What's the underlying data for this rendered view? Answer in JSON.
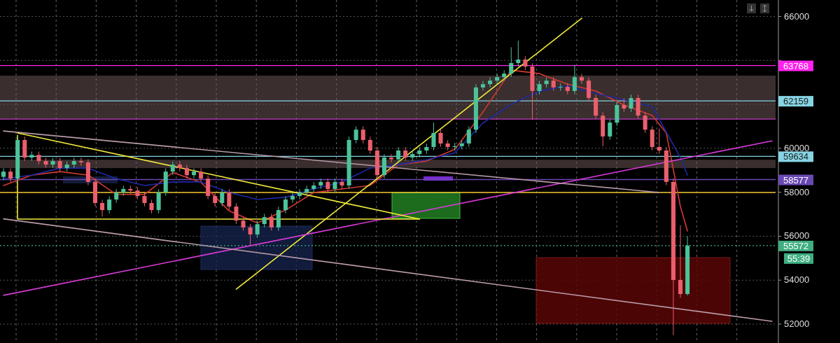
{
  "chart_data": {
    "type": "candlestick",
    "categories": [
      null,
      null,
      null,
      null,
      null,
      null,
      null,
      null,
      null,
      null,
      null,
      null,
      null,
      null,
      null,
      null,
      null,
      null,
      null,
      null,
      null,
      null,
      null,
      null,
      null,
      null,
      null,
      null,
      null,
      null,
      null,
      null,
      null,
      null,
      null,
      null,
      null,
      null,
      null,
      null,
      null,
      null,
      null,
      null,
      null,
      null,
      null,
      null,
      null,
      null,
      null,
      null,
      null,
      null,
      null,
      null,
      null,
      null,
      null,
      null,
      null,
      null,
      null,
      null,
      null,
      null,
      null,
      null,
      null,
      null,
      null,
      null,
      null,
      null,
      null,
      null,
      null,
      null,
      null,
      null,
      null,
      null,
      null,
      null,
      null,
      null,
      null,
      null,
      null,
      null,
      null,
      null,
      null,
      null,
      null,
      null,
      null,
      null,
      null,
      null,
      null,
      null,
      null,
      null,
      null,
      null,
      null,
      null,
      null,
      null
    ],
    "ohlc": [
      [
        58700,
        59090,
        58550,
        58940
      ],
      [
        58940,
        59090,
        58470,
        58620
      ],
      [
        58620,
        60530,
        58470,
        60380
      ],
      [
        60380,
        60530,
        59430,
        59580
      ],
      [
        59580,
        59850,
        59430,
        59700
      ],
      [
        59700,
        59850,
        59270,
        59420
      ],
      [
        59420,
        59570,
        59110,
        59260
      ],
      [
        59260,
        59570,
        59110,
        59420
      ],
      [
        59420,
        59570,
        58950,
        59100
      ],
      [
        59100,
        59410,
        58950,
        59260
      ],
      [
        59260,
        59570,
        59110,
        59420
      ],
      [
        59420,
        59570,
        59210,
        59360
      ],
      [
        59360,
        59510,
        58320,
        58470
      ],
      [
        58470,
        58620,
        57360,
        57510
      ],
      [
        57510,
        57660,
        56890,
        57190
      ],
      [
        57190,
        57820,
        57040,
        57670
      ],
      [
        57670,
        58140,
        57520,
        57990
      ],
      [
        57990,
        58300,
        57840,
        58150
      ],
      [
        58150,
        58300,
        57930,
        58080
      ],
      [
        58080,
        58230,
        57680,
        57830
      ],
      [
        57830,
        57980,
        57360,
        57510
      ],
      [
        57510,
        57660,
        57040,
        57190
      ],
      [
        57190,
        58140,
        57040,
        57990
      ],
      [
        57990,
        59090,
        57840,
        58940
      ],
      [
        58940,
        59410,
        58790,
        59260
      ],
      [
        59260,
        59410,
        58950,
        59100
      ],
      [
        59100,
        59250,
        58630,
        58780
      ],
      [
        58780,
        59090,
        58630,
        58940
      ],
      [
        58940,
        59090,
        58470,
        58620
      ],
      [
        58620,
        58770,
        57680,
        57830
      ],
      [
        57830,
        57980,
        57360,
        57510
      ],
      [
        57510,
        58140,
        57360,
        57990
      ],
      [
        57990,
        58140,
        57200,
        57350
      ],
      [
        57350,
        57500,
        56560,
        56710
      ],
      [
        56710,
        56860,
        56250,
        56400
      ],
      [
        56400,
        56550,
        55600,
        56080
      ],
      [
        56080,
        56700,
        55930,
        56550
      ],
      [
        56550,
        57020,
        56400,
        56870
      ],
      [
        56870,
        57020,
        56250,
        56400
      ],
      [
        56400,
        57340,
        56250,
        57190
      ],
      [
        57190,
        57820,
        57040,
        57670
      ],
      [
        57670,
        57980,
        57520,
        57830
      ],
      [
        57830,
        58140,
        57680,
        57990
      ],
      [
        57990,
        58300,
        57840,
        58150
      ],
      [
        58150,
        58460,
        58000,
        58310
      ],
      [
        58310,
        58620,
        58160,
        58470
      ],
      [
        58470,
        58620,
        58000,
        58150
      ],
      [
        58150,
        58620,
        58000,
        58470
      ],
      [
        58470,
        58620,
        58160,
        58310
      ],
      [
        58310,
        60530,
        58160,
        60380
      ],
      [
        60380,
        61000,
        60230,
        60850
      ],
      [
        60850,
        61000,
        60230,
        60380
      ],
      [
        60380,
        60530,
        59750,
        59900
      ],
      [
        59900,
        60050,
        58630,
        58780
      ],
      [
        58780,
        59730,
        58630,
        59580
      ],
      [
        59580,
        59730,
        59350,
        59500
      ],
      [
        59500,
        60050,
        59350,
        59900
      ],
      [
        59900,
        60050,
        59430,
        59580
      ],
      [
        59580,
        59890,
        59430,
        59740
      ],
      [
        59740,
        60050,
        59590,
        59900
      ],
      [
        59900,
        60210,
        59750,
        60060
      ],
      [
        60060,
        61170,
        59910,
        60700
      ],
      [
        60700,
        60850,
        60070,
        60220
      ],
      [
        60220,
        60370,
        59910,
        60060
      ],
      [
        60060,
        60250,
        59910,
        60100
      ],
      [
        60100,
        60370,
        59950,
        60220
      ],
      [
        60220,
        61000,
        60070,
        60850
      ],
      [
        60850,
        62920,
        60700,
        62770
      ],
      [
        62770,
        63070,
        62620,
        62920
      ],
      [
        62920,
        63230,
        62770,
        63080
      ],
      [
        63080,
        63390,
        62930,
        63240
      ],
      [
        63240,
        63550,
        63090,
        63400
      ],
      [
        63400,
        64600,
        63250,
        63880
      ],
      [
        63880,
        64900,
        63730,
        64040
      ],
      [
        64040,
        64190,
        63570,
        63720
      ],
      [
        63720,
        63870,
        61300,
        62610
      ],
      [
        62610,
        63070,
        62460,
        62920
      ],
      [
        62920,
        63230,
        62770,
        63080
      ],
      [
        63080,
        63230,
        62620,
        62770
      ],
      [
        62770,
        62950,
        62620,
        62800
      ],
      [
        62800,
        62950,
        62460,
        62610
      ],
      [
        62610,
        63800,
        62460,
        63240
      ],
      [
        63240,
        63390,
        62930,
        63080
      ],
      [
        63080,
        63230,
        62140,
        62290
      ],
      [
        62290,
        62440,
        61340,
        61490
      ],
      [
        61490,
        61640,
        60100,
        60540
      ],
      [
        60540,
        61320,
        60390,
        61170
      ],
      [
        61170,
        62120,
        61020,
        61970
      ],
      [
        61970,
        62280,
        61660,
        61810
      ],
      [
        61810,
        62440,
        61660,
        62290
      ],
      [
        62290,
        62440,
        61340,
        61490
      ],
      [
        61490,
        61640,
        60700,
        60850
      ],
      [
        60850,
        61000,
        59910,
        60060
      ],
      [
        60060,
        60900,
        59750,
        59900
      ],
      [
        59900,
        60050,
        58320,
        58470
      ],
      [
        58470,
        58620,
        51500,
        54010
      ],
      [
        54010,
        56500,
        53200,
        53370
      ],
      [
        53370,
        56000,
        53300,
        55572
      ],
      null,
      null,
      null,
      null,
      null,
      null,
      null,
      null,
      null,
      null,
      null,
      null
    ],
    "series": [
      {
        "type": "line",
        "color": "#d23a32",
        "values": [
          58310,
          null,
          null,
          null,
          58780,
          null,
          null,
          null,
          58940,
          null,
          null,
          null,
          58780,
          null,
          null,
          null,
          57900,
          null,
          null,
          null,
          57900,
          null,
          null,
          null,
          58900,
          null,
          null,
          null,
          58450,
          null,
          null,
          null,
          57150,
          null,
          null,
          null,
          56600,
          null,
          null,
          null,
          57190,
          null,
          null,
          null,
          57990,
          null,
          null,
          null,
          58150,
          null,
          null,
          null,
          58310,
          null,
          null,
          null,
          59260,
          null,
          null,
          null,
          59420,
          null,
          null,
          null,
          59950,
          null,
          null,
          null,
          61650,
          null,
          null,
          null,
          63560,
          null,
          null,
          null,
          63400,
          null,
          null,
          null,
          62920,
          null,
          null,
          null,
          62610,
          null,
          null,
          null,
          61970,
          null,
          null,
          null,
          61490,
          null,
          60700,
          null,
          57350,
          56240,
          null,
          null,
          null,
          null,
          null,
          null,
          null,
          null,
          null,
          null,
          null,
          null
        ]
      },
      {
        "type": "line",
        "color": "#1c2aa8",
        "values": [
          58620,
          null,
          null,
          null,
          58780,
          null,
          null,
          null,
          59100,
          null,
          null,
          null,
          59100,
          null,
          null,
          null,
          58620,
          null,
          null,
          null,
          58310,
          null,
          null,
          null,
          58470,
          null,
          null,
          null,
          58470,
          null,
          null,
          null,
          57990,
          null,
          null,
          null,
          57670,
          null,
          null,
          null,
          57770,
          null,
          null,
          null,
          58150,
          null,
          null,
          null,
          58470,
          null,
          null,
          null,
          59100,
          null,
          null,
          null,
          59260,
          null,
          null,
          null,
          59480,
          null,
          null,
          null,
          59800,
          null,
          null,
          null,
          61150,
          null,
          null,
          null,
          62000,
          null,
          null,
          null,
          62600,
          null,
          null,
          null,
          62850,
          null,
          null,
          null,
          62500,
          null,
          null,
          null,
          62200,
          null,
          null,
          null,
          61900,
          null,
          null,
          null,
          59580,
          58780,
          null,
          null,
          null,
          null,
          null,
          null,
          null,
          null,
          null,
          null,
          null,
          null
        ]
      },
      {
        "type": "line",
        "color": "#f2ea3a",
        "values": [
          null,
          null,
          null,
          null,
          null,
          null,
          null,
          null,
          null,
          null,
          null,
          null,
          null,
          null,
          null,
          null,
          null,
          null,
          null,
          null,
          null,
          null,
          null,
          null,
          null,
          null,
          null,
          null,
          null,
          null,
          null,
          null,
          null,
          53590,
          null,
          null,
          null,
          null,
          null,
          null,
          null,
          null,
          null,
          null,
          null,
          null,
          null,
          null,
          null,
          null,
          null,
          null,
          null,
          null,
          null,
          null,
          null,
          null,
          null,
          null,
          null,
          null,
          null,
          null,
          null,
          null,
          null,
          null,
          null,
          null,
          null,
          null,
          null,
          null,
          null,
          null,
          null,
          null,
          null,
          null,
          null,
          null,
          65920,
          null,
          null,
          null,
          null,
          null,
          null,
          null,
          null,
          null,
          null,
          null,
          null,
          null,
          null,
          null,
          null,
          null,
          null,
          null,
          null,
          null,
          null,
          null,
          null,
          null,
          null,
          null
        ]
      },
      {
        "type": "line",
        "color": "#d83ad8",
        "values": [
          53310,
          null,
          null,
          null,
          null,
          null,
          null,
          null,
          null,
          null,
          null,
          null,
          null,
          null,
          null,
          null,
          null,
          null,
          null,
          null,
          null,
          null,
          null,
          null,
          null,
          null,
          null,
          null,
          null,
          null,
          null,
          null,
          null,
          null,
          null,
          null,
          null,
          null,
          null,
          null,
          null,
          null,
          null,
          null,
          null,
          null,
          null,
          null,
          null,
          null,
          null,
          null,
          null,
          null,
          null,
          null,
          null,
          null,
          null,
          null,
          null,
          null,
          null,
          null,
          null,
          null,
          null,
          null,
          null,
          null,
          null,
          null,
          null,
          null,
          null,
          null,
          null,
          null,
          null,
          null,
          null,
          null,
          null,
          null,
          null,
          null,
          null,
          null,
          null,
          null,
          null,
          null,
          null,
          null,
          null,
          null,
          null,
          null,
          null,
          null,
          null,
          null,
          null,
          null,
          null,
          null,
          null,
          null,
          null,
          60340
        ]
      },
      {
        "type": "line",
        "color": "#b89aa8",
        "values": [
          60790,
          null,
          null,
          null,
          null,
          null,
          null,
          null,
          null,
          null,
          null,
          null,
          null,
          null,
          null,
          null,
          null,
          null,
          null,
          null,
          null,
          null,
          null,
          null,
          null,
          null,
          null,
          null,
          null,
          null,
          null,
          null,
          null,
          null,
          null,
          null,
          null,
          null,
          null,
          null,
          null,
          null,
          null,
          null,
          null,
          null,
          null,
          null,
          null,
          null,
          null,
          null,
          null,
          null,
          null,
          null,
          null,
          null,
          null,
          null,
          null,
          null,
          null,
          null,
          null,
          null,
          null,
          null,
          null,
          null,
          null,
          null,
          null,
          null,
          null,
          null,
          null,
          null,
          null,
          null,
          null,
          null,
          null,
          null,
          null,
          null,
          null,
          null,
          null,
          null,
          null,
          null,
          null,
          57990,
          null,
          null,
          null,
          null,
          null,
          null,
          null,
          null,
          null,
          null,
          null,
          null,
          null,
          null,
          null,
          null
        ]
      },
      {
        "type": "line",
        "color": "#b89aa8",
        "values": [
          56790,
          null,
          null,
          null,
          null,
          null,
          null,
          null,
          null,
          null,
          null,
          null,
          null,
          null,
          null,
          null,
          null,
          null,
          null,
          null,
          null,
          null,
          null,
          null,
          null,
          null,
          null,
          null,
          null,
          null,
          null,
          null,
          null,
          null,
          null,
          null,
          null,
          null,
          null,
          null,
          null,
          null,
          null,
          null,
          null,
          null,
          null,
          null,
          null,
          null,
          null,
          null,
          null,
          null,
          null,
          null,
          null,
          null,
          null,
          null,
          null,
          null,
          null,
          null,
          null,
          null,
          null,
          null,
          null,
          null,
          null,
          null,
          null,
          null,
          null,
          null,
          null,
          null,
          null,
          null,
          null,
          null,
          null,
          null,
          null,
          null,
          null,
          null,
          null,
          null,
          null,
          null,
          null,
          null,
          null,
          null,
          null,
          null,
          null,
          null,
          null,
          null,
          null,
          null,
          null,
          null,
          null,
          null,
          null,
          52130
        ]
      },
      {
        "type": "line",
        "color": "#f2ea3a",
        "values": [
          null,
          null,
          60700,
          null,
          null,
          null,
          null,
          null,
          null,
          null,
          null,
          null,
          null,
          null,
          null,
          null,
          null,
          null,
          null,
          null,
          null,
          null,
          null,
          null,
          null,
          null,
          null,
          null,
          null,
          null,
          null,
          null,
          null,
          null,
          null,
          null,
          null,
          null,
          null,
          null,
          null,
          null,
          null,
          null,
          null,
          null,
          null,
          null,
          null,
          null,
          null,
          null,
          null,
          null,
          null,
          null,
          null,
          null,
          null,
          56780,
          null,
          null,
          null,
          null,
          null,
          null,
          null,
          null,
          null,
          null,
          null,
          null,
          null,
          null,
          null,
          null,
          null,
          null,
          null,
          null,
          null,
          null,
          null,
          null,
          null,
          null,
          null,
          null,
          null,
          null,
          null,
          null,
          null,
          null,
          null,
          null,
          null,
          null,
          null,
          null,
          null,
          null,
          null,
          null,
          null,
          null,
          null,
          null,
          null,
          null
        ]
      },
      {
        "type": "line",
        "color": "#f2ea3a",
        "values": [
          null,
          null,
          56780,
          null,
          null,
          null,
          null,
          null,
          null,
          null,
          null,
          null,
          null,
          null,
          null,
          null,
          null,
          null,
          null,
          null,
          null,
          null,
          null,
          null,
          null,
          null,
          null,
          null,
          null,
          null,
          null,
          null,
          null,
          null,
          null,
          null,
          null,
          null,
          null,
          null,
          null,
          null,
          null,
          null,
          null,
          null,
          null,
          null,
          null,
          null,
          null,
          null,
          null,
          null,
          null,
          null,
          null,
          null,
          null,
          56780,
          null,
          null,
          null,
          null,
          null,
          null,
          null,
          null,
          null,
          null,
          null,
          null,
          null,
          null,
          null,
          null,
          null,
          null,
          null,
          null,
          null,
          null,
          null,
          null,
          null,
          null,
          null,
          null,
          null,
          null,
          null,
          null,
          null,
          null,
          null,
          null,
          null,
          null,
          null,
          null,
          null,
          null,
          null,
          null,
          null,
          null,
          null,
          null,
          null,
          null
        ]
      }
    ],
    "ylim": [
      51140,
      66750
    ],
    "yticks": [
      52000,
      54000,
      56000,
      58000,
      60000,
      {
        "value": 62000,
        "label": null
      },
      {
        "value": 64000,
        "label": null
      },
      66000
    ],
    "grid": true,
    "ref_lines": [
      {
        "axis": "y",
        "value": 63768,
        "label": "63768",
        "color": "#ff22ee"
      },
      {
        "axis": "y",
        "value": 62159,
        "label": "62159",
        "color": "#86d4e4"
      },
      {
        "axis": "y",
        "value": 61330,
        "color": "#c23cc8"
      },
      {
        "axis": "y",
        "value": 59634,
        "label": "59634",
        "color": "#86d4e4"
      },
      {
        "axis": "y",
        "value": 58577,
        "label": "58577",
        "color": "#6a48b4"
      },
      {
        "axis": "y",
        "value": 57990,
        "color": "#f0c42a"
      },
      {
        "axis": "y",
        "value": 55572,
        "label": "55572",
        "color": "#3fae80",
        "line_style": "dotted"
      }
    ],
    "bands": [
      {
        "axis": "y",
        "from": 61330,
        "to": 63310,
        "color": "#3a2e2e"
      },
      {
        "axis": "y",
        "from": 59100,
        "to": 59480,
        "color": "#3a2e2e"
      }
    ],
    "annotations": [
      "55:39"
    ]
  }
}
